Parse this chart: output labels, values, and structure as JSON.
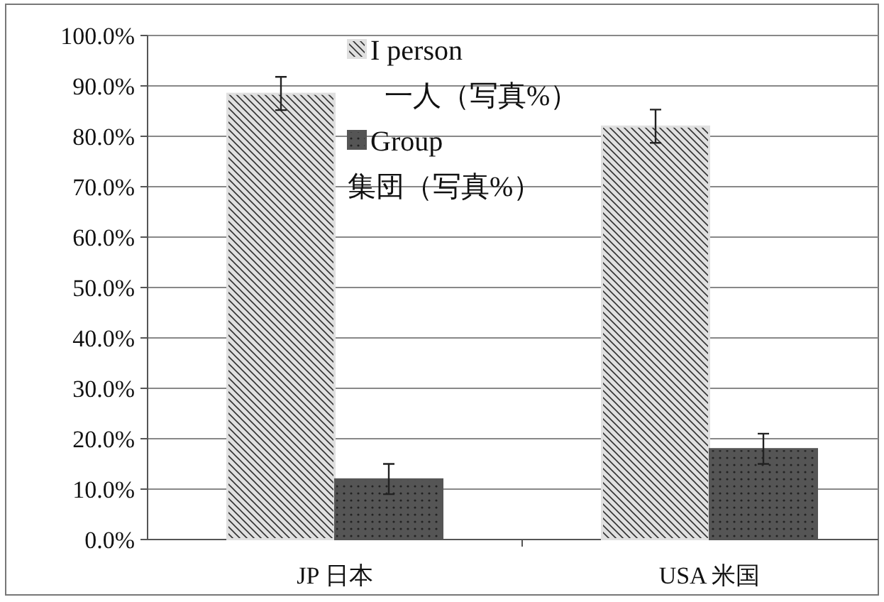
{
  "chart_data": {
    "type": "bar",
    "categories": [
      "JP 日本",
      "USA 米国"
    ],
    "series": [
      {
        "name": "I person\n一人（写真%）",
        "color": "#e0e0e0",
        "values": [
          88.5,
          82
        ],
        "errors": [
          3.3,
          3.3
        ]
      },
      {
        "name": "Group\n集団（写真%）",
        "color": "#555555",
        "values": [
          12,
          18
        ],
        "errors": [
          3,
          3
        ]
      }
    ],
    "ylim": [
      0,
      100
    ],
    "yticks": [
      {
        "value": 0,
        "label": "0.0%"
      },
      {
        "value": 10,
        "label": "10.0%"
      },
      {
        "value": 20,
        "label": "20.0%"
      },
      {
        "value": 30,
        "label": "30.0%"
      },
      {
        "value": 40,
        "label": "40.0%"
      },
      {
        "value": 50,
        "label": "50.0%"
      },
      {
        "value": 60,
        "label": "60.0%"
      },
      {
        "value": 70,
        "label": "70.0%"
      },
      {
        "value": 80,
        "label": "80.0%"
      },
      {
        "value": 90,
        "label": "90.0%"
      },
      {
        "value": 100,
        "label": "100.0%"
      }
    ],
    "grid": "y",
    "legend": "top"
  }
}
